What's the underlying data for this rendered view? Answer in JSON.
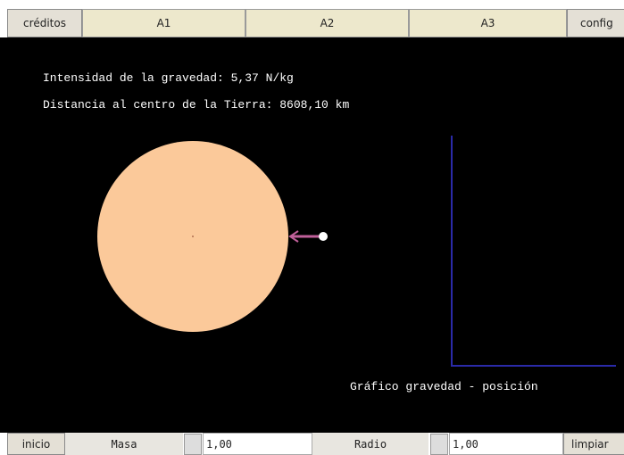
{
  "tabs": {
    "credits": "créditos",
    "a1": "A1",
    "a2": "A2",
    "a3": "A3",
    "config": "config"
  },
  "readouts": {
    "gravity": "Intensidad de la gravedad:  5,37  N/kg",
    "distance": "Distancia al centro de la Tierra:  8608,10  km"
  },
  "graph": {
    "title": "Gráfico gravedad - posición"
  },
  "controls": {
    "start": "inicio",
    "mass_label": "Masa",
    "mass_value": "1,00",
    "radius_label": "Radio",
    "radius_value": "1,00",
    "clear": "limpiar"
  }
}
